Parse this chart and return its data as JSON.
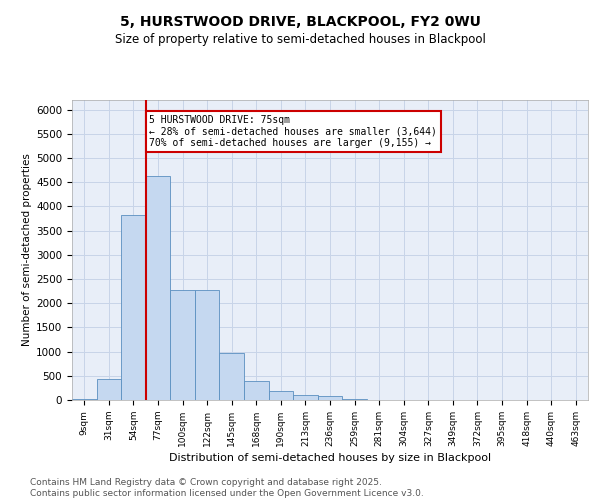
{
  "title": "5, HURSTWOOD DRIVE, BLACKPOOL, FY2 0WU",
  "subtitle": "Size of property relative to semi-detached houses in Blackpool",
  "xlabel": "Distribution of semi-detached houses by size in Blackpool",
  "ylabel": "Number of semi-detached properties",
  "bar_labels": [
    "9sqm",
    "31sqm",
    "54sqm",
    "77sqm",
    "100sqm",
    "122sqm",
    "145sqm",
    "168sqm",
    "190sqm",
    "213sqm",
    "236sqm",
    "259sqm",
    "281sqm",
    "304sqm",
    "327sqm",
    "349sqm",
    "372sqm",
    "395sqm",
    "418sqm",
    "440sqm",
    "463sqm"
  ],
  "bar_values": [
    20,
    430,
    3820,
    4620,
    2270,
    2270,
    980,
    400,
    190,
    110,
    85,
    20,
    5,
    0,
    0,
    0,
    0,
    0,
    0,
    0,
    0
  ],
  "bar_color": "#c5d8f0",
  "bar_edge_color": "#5a8fc0",
  "vline_x": 2.5,
  "annotation_title": "5 HURSTWOOD DRIVE: 75sqm",
  "annotation_line1": "← 28% of semi-detached houses are smaller (3,644)",
  "annotation_line2": "70% of semi-detached houses are larger (9,155) →",
  "annotation_box_color": "#ffffff",
  "annotation_box_edge_color": "#cc0000",
  "vline_color": "#cc0000",
  "ylim": [
    0,
    6200
  ],
  "yticks": [
    0,
    500,
    1000,
    1500,
    2000,
    2500,
    3000,
    3500,
    4000,
    4500,
    5000,
    5500,
    6000
  ],
  "grid_color": "#c8d4e8",
  "background_color": "#e8eef8",
  "footer_line1": "Contains HM Land Registry data © Crown copyright and database right 2025.",
  "footer_line2": "Contains public sector information licensed under the Open Government Licence v3.0.",
  "title_fontsize": 10,
  "subtitle_fontsize": 8.5,
  "footer_fontsize": 6.5
}
